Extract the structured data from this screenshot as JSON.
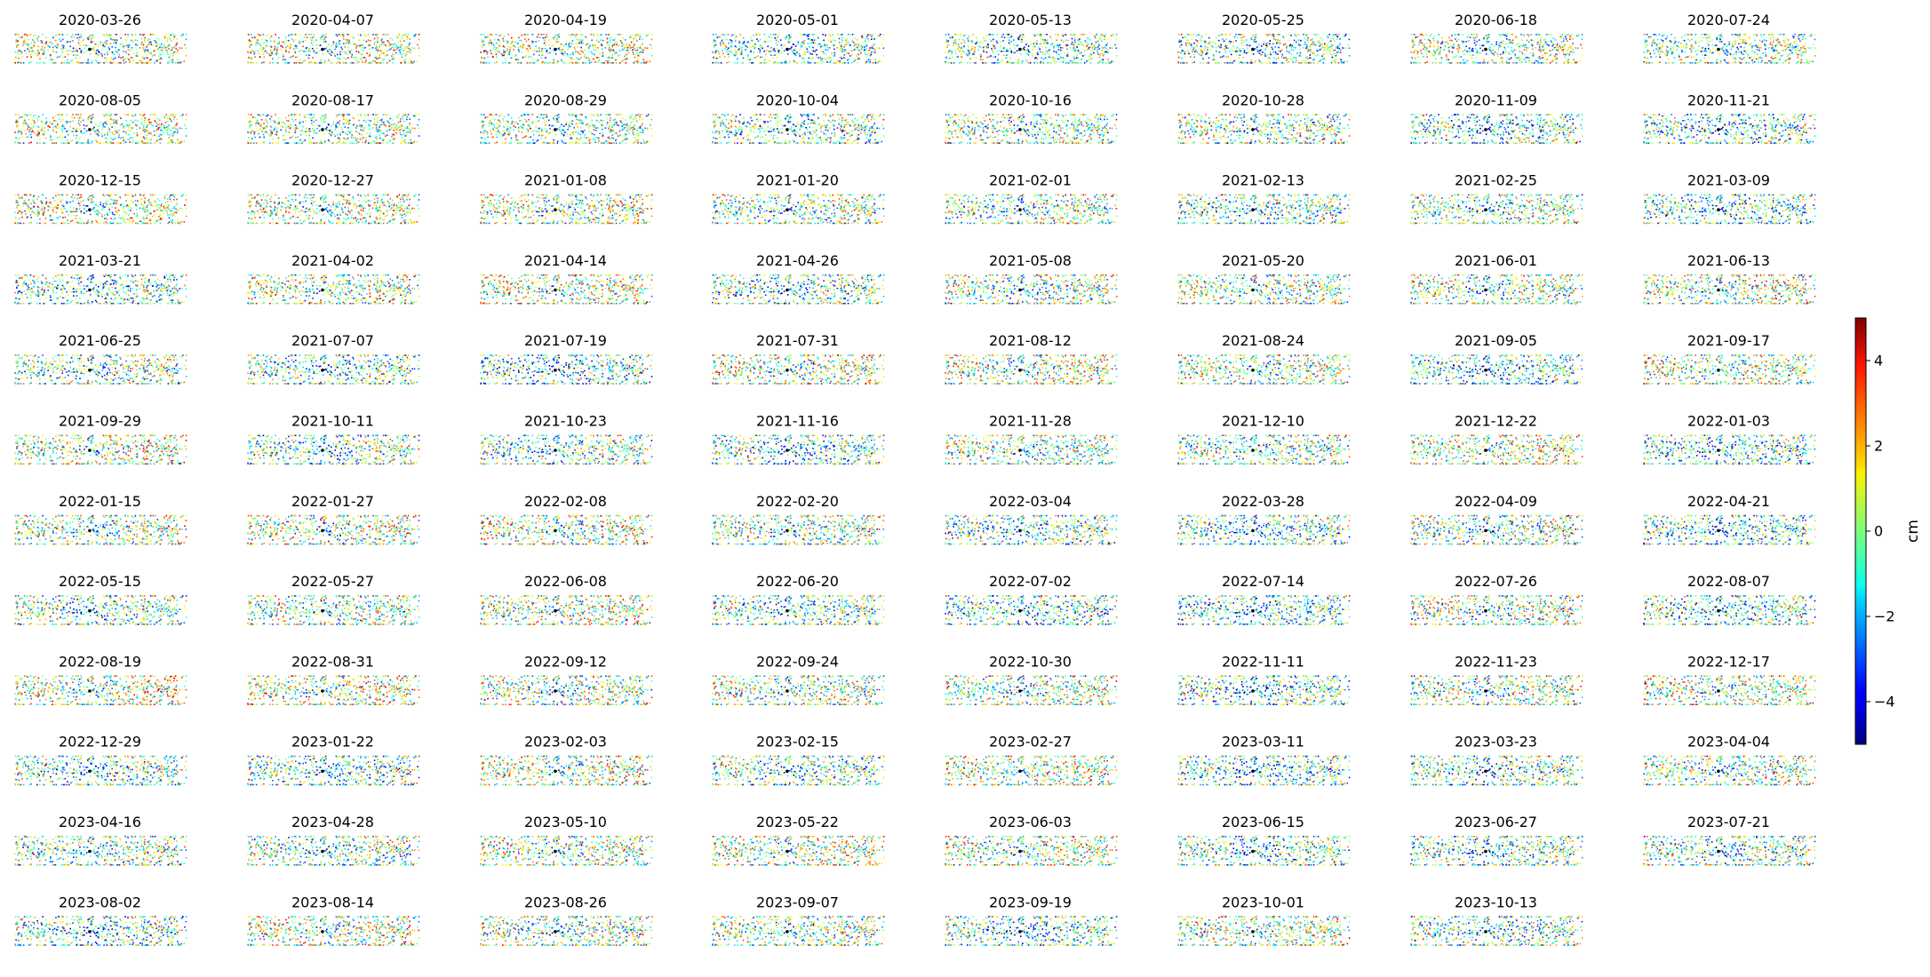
{
  "chart_data": {
    "type": "scatter",
    "title": "",
    "layout": "small-multiples grid, 8 columns",
    "panels": [
      "2020-03-26",
      "2020-04-07",
      "2020-04-19",
      "2020-05-01",
      "2020-05-13",
      "2020-05-25",
      "2020-06-18",
      "2020-07-24",
      "2020-08-05",
      "2020-08-17",
      "2020-08-29",
      "2020-10-04",
      "2020-10-16",
      "2020-10-28",
      "2020-11-09",
      "2020-11-21",
      "2020-12-15",
      "2020-12-27",
      "2021-01-08",
      "2021-01-20",
      "2021-02-01",
      "2021-02-13",
      "2021-02-25",
      "2021-03-09",
      "2021-03-21",
      "2021-04-02",
      "2021-04-14",
      "2021-04-26",
      "2021-05-08",
      "2021-05-20",
      "2021-06-01",
      "2021-06-13",
      "2021-06-25",
      "2021-07-07",
      "2021-07-19",
      "2021-07-31",
      "2021-08-12",
      "2021-08-24",
      "2021-09-05",
      "2021-09-17",
      "2021-09-29",
      "2021-10-11",
      "2021-10-23",
      "2021-11-16",
      "2021-11-28",
      "2021-12-10",
      "2021-12-22",
      "2022-01-03",
      "2022-01-15",
      "2022-01-27",
      "2022-02-08",
      "2022-02-20",
      "2022-03-04",
      "2022-03-28",
      "2022-04-09",
      "2022-04-21",
      "2022-05-15",
      "2022-05-27",
      "2022-06-08",
      "2022-06-20",
      "2022-07-02",
      "2022-07-14",
      "2022-07-26",
      "2022-08-07",
      "2022-08-19",
      "2022-08-31",
      "2022-09-12",
      "2022-09-24",
      "2022-10-30",
      "2022-11-11",
      "2022-11-23",
      "2022-12-17",
      "2022-12-29",
      "2023-01-22",
      "2023-02-03",
      "2023-02-15",
      "2023-02-27",
      "2023-03-11",
      "2023-03-23",
      "2023-04-04",
      "2023-04-16",
      "2023-04-28",
      "2023-05-10",
      "2023-05-22",
      "2023-06-03",
      "2023-06-15",
      "2023-06-27",
      "2023-07-21",
      "2023-08-02",
      "2023-08-14",
      "2023-08-26",
      "2023-09-07",
      "2023-09-19",
      "2023-10-01",
      "2023-10-13"
    ],
    "colorbar": {
      "label": "cm",
      "min": -5,
      "max": 5,
      "ticks": [
        4,
        2,
        0,
        -2,
        -4
      ],
      "tick_labels": [
        "4",
        "2",
        "0",
        "−2",
        "−4"
      ],
      "colormap": "jet"
    },
    "axes_visible": false,
    "grid": false
  }
}
